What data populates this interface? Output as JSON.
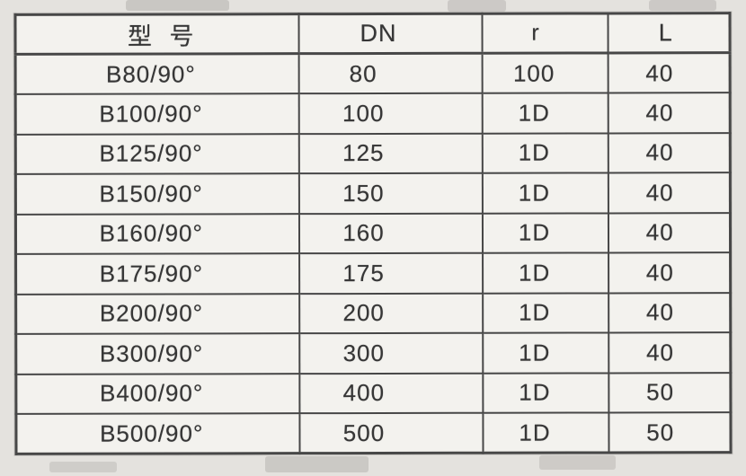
{
  "colors": {
    "page_bg": "#e4e2de",
    "paper": "#f3f2ee",
    "grid_line": "#474747",
    "ink": "#363636"
  },
  "table": {
    "headers": [
      "型 号",
      "DN",
      "r",
      "L"
    ],
    "header_keys": [
      "model",
      "dn",
      "r",
      "l"
    ],
    "rows": [
      {
        "model": "B80/90°",
        "dn": "80",
        "r": "100",
        "l": "40"
      },
      {
        "model": "B100/90°",
        "dn": "100",
        "r": "1D",
        "l": "40"
      },
      {
        "model": "B125/90°",
        "dn": "125",
        "r": "1D",
        "l": "40"
      },
      {
        "model": "B150/90°",
        "dn": "150",
        "r": "1D",
        "l": "40"
      },
      {
        "model": "B160/90°",
        "dn": "160",
        "r": "1D",
        "l": "40"
      },
      {
        "model": "B175/90°",
        "dn": "175",
        "r": "1D",
        "l": "40"
      },
      {
        "model": "B200/90°",
        "dn": "200",
        "r": "1D",
        "l": "40"
      },
      {
        "model": "B300/90°",
        "dn": "300",
        "r": "1D",
        "l": "40"
      },
      {
        "model": "B400/90°",
        "dn": "400",
        "r": "1D",
        "l": "50"
      },
      {
        "model": "B500/90°",
        "dn": "500",
        "r": "1D",
        "l": "50"
      }
    ]
  }
}
